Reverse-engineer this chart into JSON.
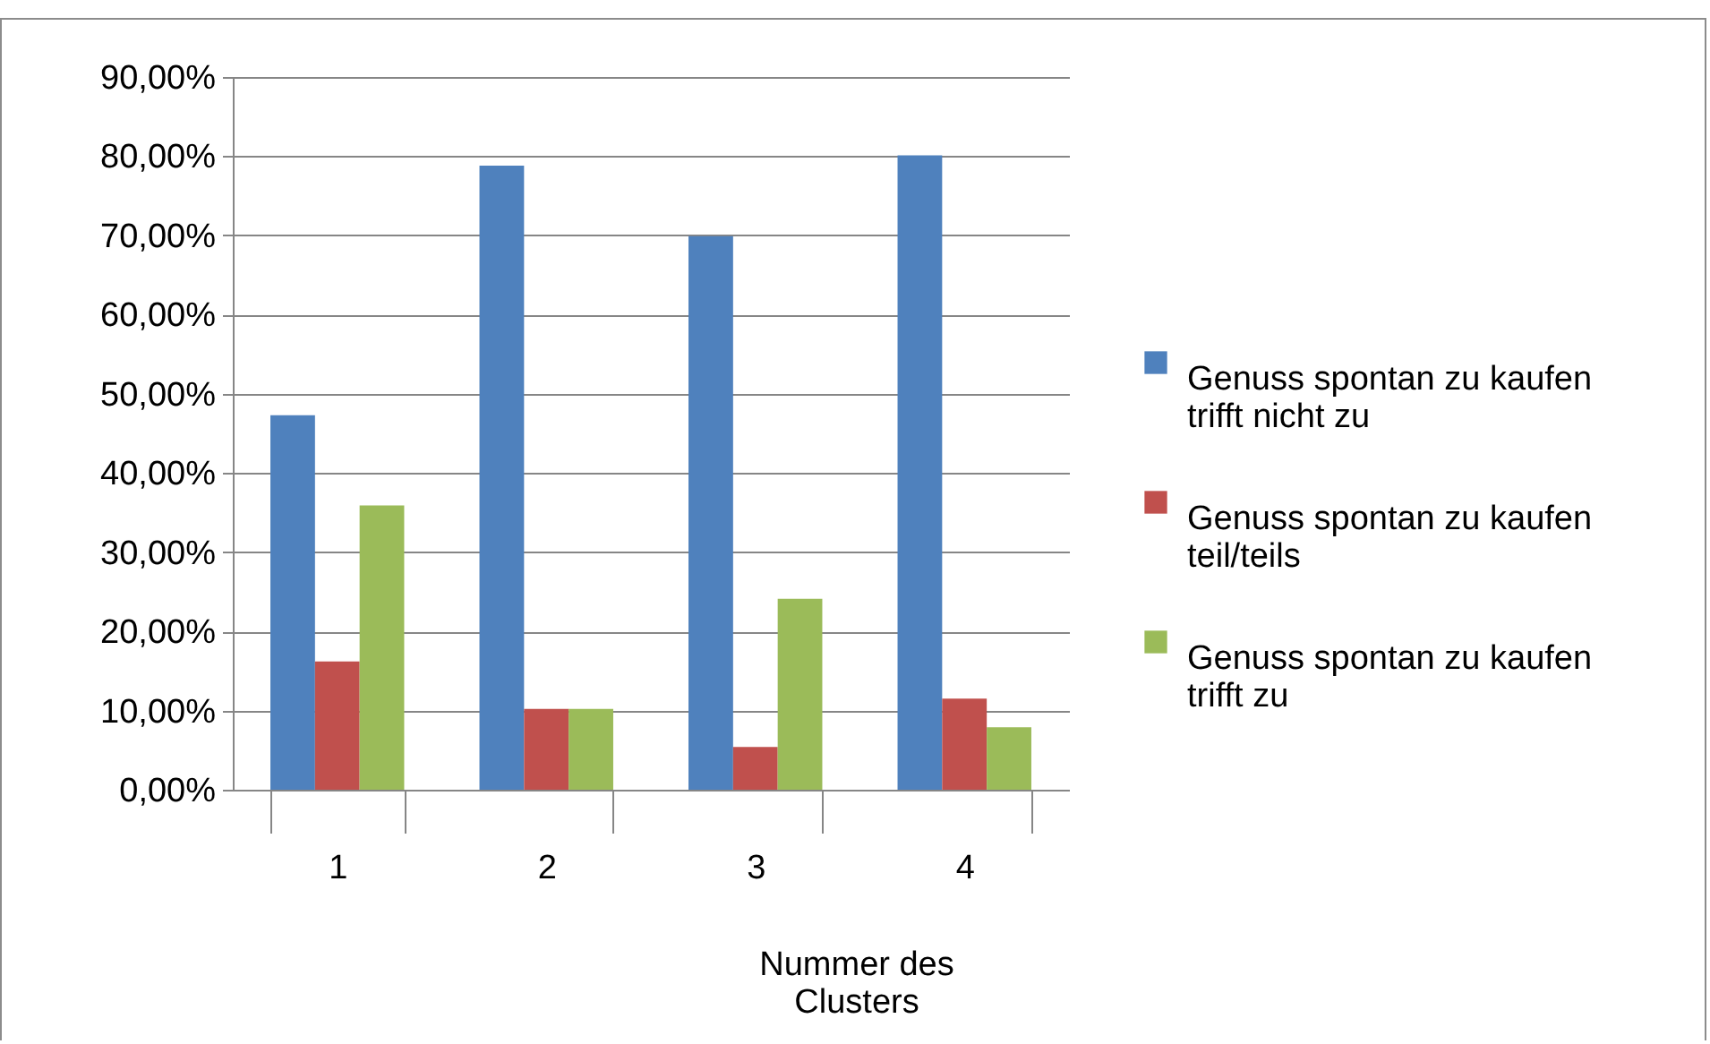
{
  "chart_data": {
    "type": "bar",
    "xlabel": "Nummer des Clusters",
    "categories": [
      "1",
      "2",
      "3",
      "4"
    ],
    "series": [
      {
        "name": "Genuss spontan zu kaufen trifft nicht zu",
        "color": "#4f81bd",
        "values": [
          47.3,
          78.8,
          69.9,
          80.1
        ]
      },
      {
        "name": "Genuss spontan zu kaufen teil/teils",
        "color": "#c0504d",
        "values": [
          16.2,
          10.2,
          5.4,
          11.5
        ]
      },
      {
        "name": "Genuss spontan zu kaufen trifft zu",
        "color": "#9bbb59",
        "values": [
          35.9,
          10.2,
          24.1,
          7.9
        ]
      }
    ],
    "ylim": [
      0,
      90
    ],
    "yticks": [
      {
        "value": 0,
        "label": "0,00%"
      },
      {
        "value": 10,
        "label": "10,00%"
      },
      {
        "value": 20,
        "label": "20,00%"
      },
      {
        "value": 30,
        "label": "30,00%"
      },
      {
        "value": 40,
        "label": "40,00%"
      },
      {
        "value": 50,
        "label": "50,00%"
      },
      {
        "value": 60,
        "label": "60,00%"
      },
      {
        "value": 70,
        "label": "70,00%"
      },
      {
        "value": 80,
        "label": "80,00%"
      },
      {
        "value": 90,
        "label": "90,00%"
      }
    ],
    "grid": "y",
    "legend": "right"
  }
}
